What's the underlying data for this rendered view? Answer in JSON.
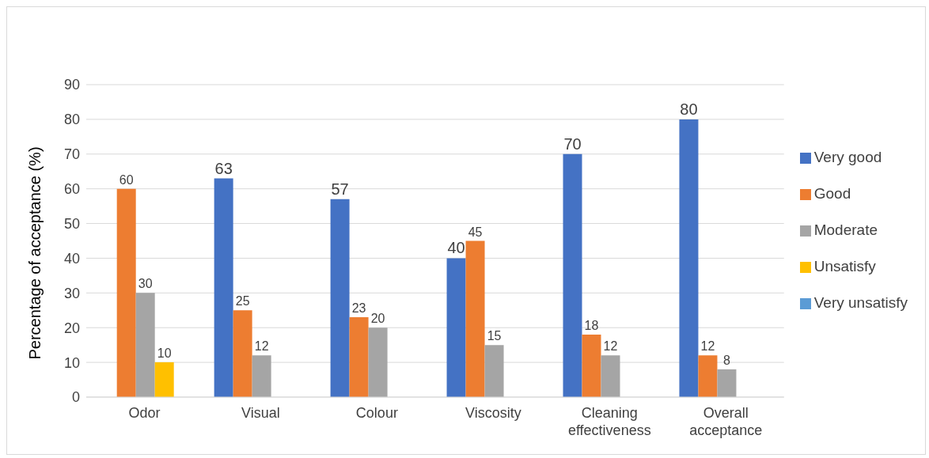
{
  "chart_data": {
    "type": "bar",
    "ylabel": "Percentage of acceptance (%)",
    "categories": [
      "Odor",
      "Visual",
      "Colour",
      "Viscosity",
      "Cleaning effectiveness",
      "Overall acceptance"
    ],
    "series": [
      {
        "name": "Very good",
        "color": "#4472c4",
        "values": [
          null,
          63,
          57,
          40,
          70,
          80
        ]
      },
      {
        "name": "Good",
        "color": "#ed7d31",
        "values": [
          60,
          25,
          23,
          45,
          18,
          12
        ]
      },
      {
        "name": "Moderate",
        "color": "#a5a5a5",
        "values": [
          30,
          12,
          20,
          15,
          12,
          8
        ]
      },
      {
        "name": "Unsatisfy",
        "color": "#ffc000",
        "values": [
          10,
          null,
          null,
          null,
          null,
          null
        ]
      },
      {
        "name": "Very unsatisfy",
        "color": "#5b9bd5",
        "values": [
          null,
          null,
          null,
          null,
          null,
          null
        ]
      }
    ],
    "ylim": [
      0,
      90
    ],
    "yticks": [
      0,
      10,
      20,
      30,
      40,
      50,
      60,
      70,
      80,
      90
    ],
    "grid": "y",
    "legend": "right",
    "data_labels": true
  }
}
